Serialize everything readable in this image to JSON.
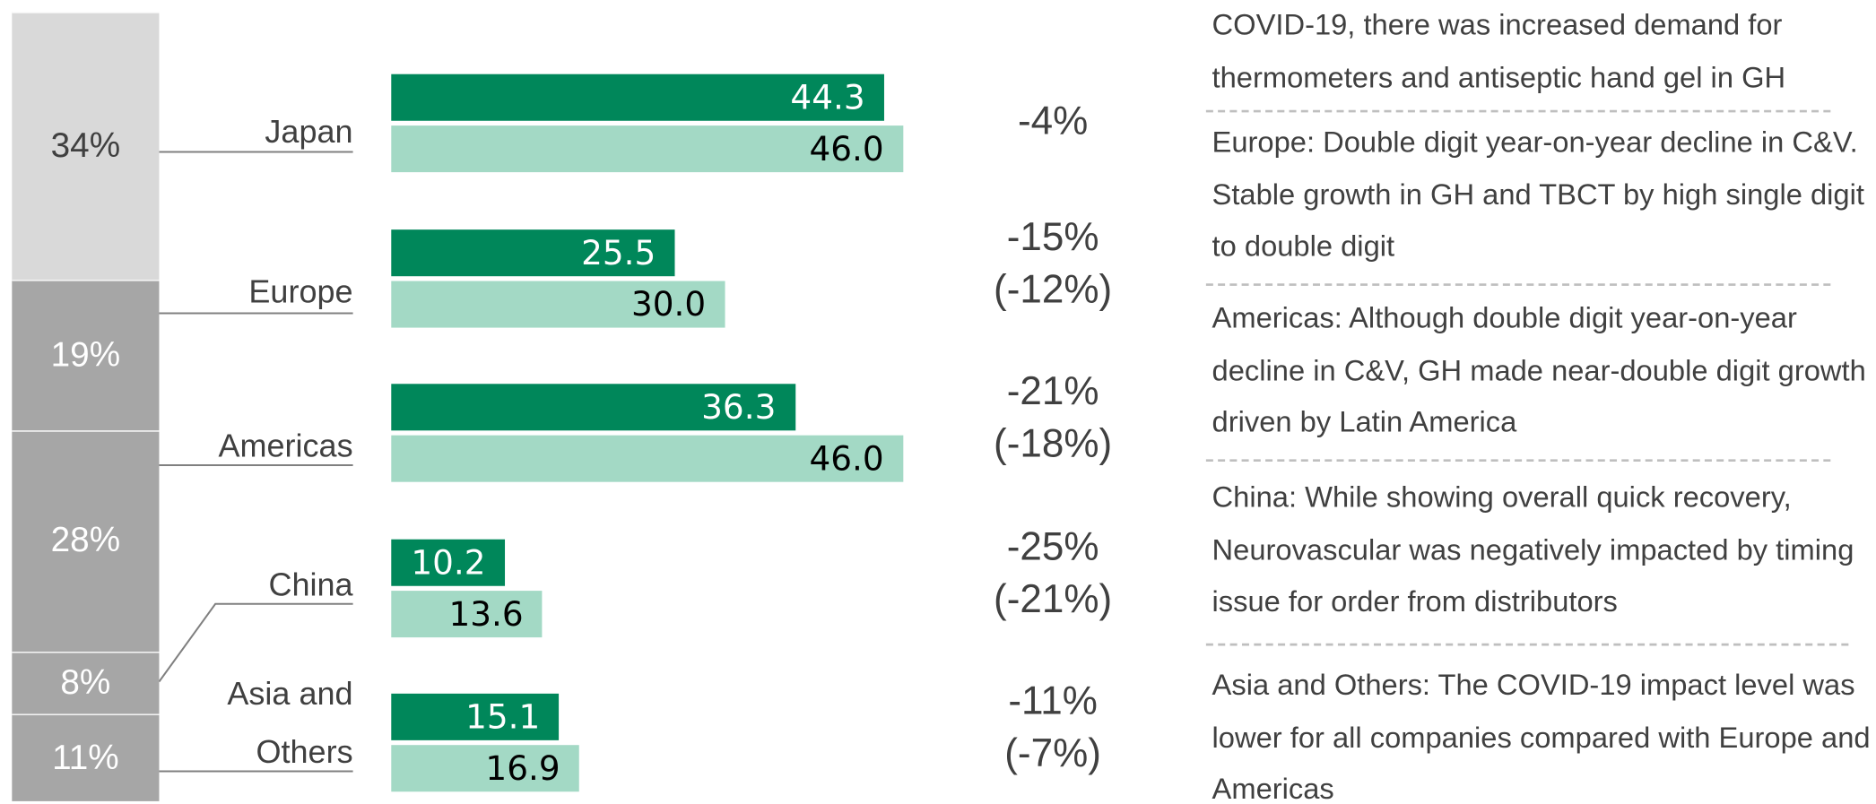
{
  "chart_data": {
    "type": "bar",
    "categories": [
      "Japan",
      "Europe",
      "Americas",
      "China",
      "Asia and Others"
    ],
    "series": [
      {
        "color": "#00875a",
        "values": [
          44.3,
          25.5,
          36.3,
          10.2,
          15.1
        ]
      },
      {
        "color": "#a3d9c5",
        "values": [
          46.0,
          30.0,
          46.0,
          13.6,
          16.9
        ],
        "value_labels": [
          "46.0",
          "30.0",
          "46.0",
          "13.6",
          "16.9"
        ]
      }
    ],
    "shares": {
      "values": [
        34,
        19,
        28,
        8,
        11
      ],
      "value_labels": [
        "34%",
        "19%",
        "28%",
        "8%",
        "11%"
      ],
      "colors": [
        "#d9d9d9",
        "#a6a6a6",
        "#a6a6a6",
        "#a6a6a6",
        "#a6a6a6"
      ]
    },
    "changes": [
      [
        "-4%"
      ],
      [
        "-15%",
        "(-12%)"
      ],
      [
        "-21%",
        "(-18%)"
      ],
      [
        "-25%",
        "(-21%)"
      ],
      [
        "-11%",
        "(-7%)"
      ]
    ],
    "notes": [
      "COVID-19, there was increased demand for thermometers and antiseptic hand gel in GH",
      "Europe: Double digit year-on-year decline in C&V. Stable growth in GH and TBCT by high single digit to double digit",
      "Americas: Although double digit year-on-year decline in C&V, GH made near-double digit growth driven by Latin America",
      "China: While showing overall quick recovery, Neurovascular was negatively impacted by timing issue for order from distributors",
      "Asia and Others: The COVID-19 impact level was lower for all companies compared with Europe and Americas"
    ]
  }
}
